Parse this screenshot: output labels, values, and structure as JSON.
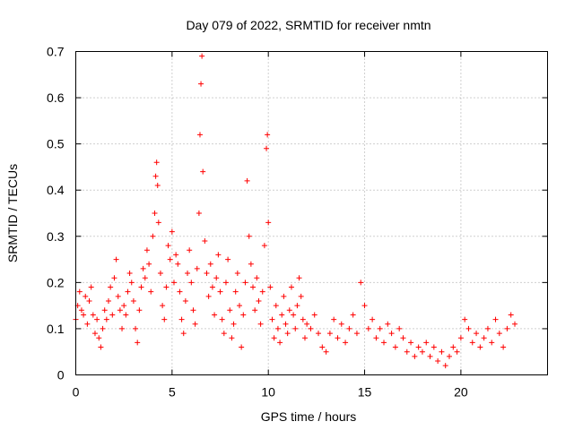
{
  "chart_data": {
    "type": "scatter",
    "title": "Day 079 of 2022, SRMTID for receiver nmtn",
    "xlabel": "GPS time / hours",
    "ylabel": "SRMTID / TECUs",
    "xlim": [
      0,
      24.5
    ],
    "ylim": [
      0,
      0.7
    ],
    "xticks": [
      0,
      5,
      10,
      15,
      20
    ],
    "yticks": [
      0,
      0.1,
      0.2,
      0.3,
      0.4,
      0.5,
      0.6,
      0.7
    ],
    "xtick_labels": [
      "0",
      "5",
      "10",
      "15",
      "20"
    ],
    "ytick_labels": [
      "0",
      "0.1",
      "0.2",
      "0.3",
      "0.4",
      "0.5",
      "0.6",
      "0.7"
    ],
    "grid": true,
    "marker": "+",
    "color": "#ff0000",
    "series": [
      {
        "name": "SRMTID",
        "points": [
          [
            0.0,
            0.12
          ],
          [
            0.1,
            0.15
          ],
          [
            0.2,
            0.18
          ],
          [
            0.3,
            0.14
          ],
          [
            0.4,
            0.13
          ],
          [
            0.5,
            0.17
          ],
          [
            0.6,
            0.11
          ],
          [
            0.7,
            0.16
          ],
          [
            0.8,
            0.19
          ],
          [
            0.9,
            0.13
          ],
          [
            1.0,
            0.09
          ],
          [
            1.1,
            0.12
          ],
          [
            1.2,
            0.08
          ],
          [
            1.3,
            0.06
          ],
          [
            1.4,
            0.1
          ],
          [
            1.5,
            0.14
          ],
          [
            1.6,
            0.12
          ],
          [
            1.7,
            0.16
          ],
          [
            1.8,
            0.19
          ],
          [
            1.9,
            0.13
          ],
          [
            2.0,
            0.21
          ],
          [
            2.1,
            0.25
          ],
          [
            2.2,
            0.17
          ],
          [
            2.3,
            0.14
          ],
          [
            2.4,
            0.1
          ],
          [
            2.5,
            0.15
          ],
          [
            2.6,
            0.13
          ],
          [
            2.7,
            0.18
          ],
          [
            2.8,
            0.22
          ],
          [
            2.9,
            0.2
          ],
          [
            3.0,
            0.16
          ],
          [
            3.1,
            0.1
          ],
          [
            3.2,
            0.07
          ],
          [
            3.3,
            0.14
          ],
          [
            3.4,
            0.19
          ],
          [
            3.5,
            0.23
          ],
          [
            3.6,
            0.21
          ],
          [
            3.7,
            0.27
          ],
          [
            3.8,
            0.24
          ],
          [
            3.9,
            0.18
          ],
          [
            4.0,
            0.3
          ],
          [
            4.1,
            0.35
          ],
          [
            4.15,
            0.43
          ],
          [
            4.2,
            0.46
          ],
          [
            4.25,
            0.41
          ],
          [
            4.3,
            0.33
          ],
          [
            4.4,
            0.22
          ],
          [
            4.5,
            0.15
          ],
          [
            4.6,
            0.12
          ],
          [
            4.7,
            0.19
          ],
          [
            4.8,
            0.28
          ],
          [
            4.9,
            0.25
          ],
          [
            5.0,
            0.31
          ],
          [
            5.1,
            0.2
          ],
          [
            5.2,
            0.26
          ],
          [
            5.3,
            0.24
          ],
          [
            5.4,
            0.18
          ],
          [
            5.5,
            0.12
          ],
          [
            5.6,
            0.09
          ],
          [
            5.7,
            0.16
          ],
          [
            5.8,
            0.22
          ],
          [
            5.9,
            0.27
          ],
          [
            6.0,
            0.2
          ],
          [
            6.1,
            0.14
          ],
          [
            6.2,
            0.11
          ],
          [
            6.3,
            0.23
          ],
          [
            6.4,
            0.35
          ],
          [
            6.45,
            0.52
          ],
          [
            6.5,
            0.63
          ],
          [
            6.55,
            0.69
          ],
          [
            6.6,
            0.44
          ],
          [
            6.7,
            0.29
          ],
          [
            6.8,
            0.22
          ],
          [
            6.9,
            0.17
          ],
          [
            7.0,
            0.24
          ],
          [
            7.1,
            0.19
          ],
          [
            7.2,
            0.13
          ],
          [
            7.3,
            0.21
          ],
          [
            7.4,
            0.26
          ],
          [
            7.5,
            0.18
          ],
          [
            7.6,
            0.12
          ],
          [
            7.7,
            0.09
          ],
          [
            7.8,
            0.2
          ],
          [
            7.9,
            0.25
          ],
          [
            8.0,
            0.14
          ],
          [
            8.1,
            0.08
          ],
          [
            8.2,
            0.11
          ],
          [
            8.3,
            0.18
          ],
          [
            8.4,
            0.22
          ],
          [
            8.5,
            0.15
          ],
          [
            8.6,
            0.06
          ],
          [
            8.7,
            0.13
          ],
          [
            8.8,
            0.2
          ],
          [
            8.9,
            0.42
          ],
          [
            9.0,
            0.3
          ],
          [
            9.1,
            0.24
          ],
          [
            9.2,
            0.19
          ],
          [
            9.3,
            0.14
          ],
          [
            9.4,
            0.21
          ],
          [
            9.5,
            0.16
          ],
          [
            9.6,
            0.11
          ],
          [
            9.7,
            0.18
          ],
          [
            9.8,
            0.28
          ],
          [
            9.9,
            0.49
          ],
          [
            9.95,
            0.52
          ],
          [
            10.0,
            0.33
          ],
          [
            10.1,
            0.19
          ],
          [
            10.2,
            0.12
          ],
          [
            10.3,
            0.08
          ],
          [
            10.4,
            0.15
          ],
          [
            10.5,
            0.1
          ],
          [
            10.6,
            0.07
          ],
          [
            10.7,
            0.13
          ],
          [
            10.8,
            0.17
          ],
          [
            10.9,
            0.11
          ],
          [
            11.0,
            0.09
          ],
          [
            11.1,
            0.14
          ],
          [
            11.2,
            0.19
          ],
          [
            11.3,
            0.13
          ],
          [
            11.4,
            0.1
          ],
          [
            11.5,
            0.15
          ],
          [
            11.6,
            0.21
          ],
          [
            11.7,
            0.17
          ],
          [
            11.8,
            0.12
          ],
          [
            11.9,
            0.08
          ],
          [
            12.0,
            0.11
          ],
          [
            12.2,
            0.1
          ],
          [
            12.4,
            0.13
          ],
          [
            12.6,
            0.09
          ],
          [
            12.8,
            0.06
          ],
          [
            13.0,
            0.05
          ],
          [
            13.2,
            0.09
          ],
          [
            13.4,
            0.12
          ],
          [
            13.6,
            0.08
          ],
          [
            13.8,
            0.11
          ],
          [
            14.0,
            0.07
          ],
          [
            14.2,
            0.1
          ],
          [
            14.4,
            0.13
          ],
          [
            14.6,
            0.09
          ],
          [
            14.8,
            0.2
          ],
          [
            15.0,
            0.15
          ],
          [
            15.2,
            0.1
          ],
          [
            15.4,
            0.12
          ],
          [
            15.6,
            0.08
          ],
          [
            15.8,
            0.1
          ],
          [
            16.0,
            0.07
          ],
          [
            16.2,
            0.11
          ],
          [
            16.4,
            0.09
          ],
          [
            16.6,
            0.06
          ],
          [
            16.8,
            0.1
          ],
          [
            17.0,
            0.08
          ],
          [
            17.2,
            0.05
          ],
          [
            17.4,
            0.07
          ],
          [
            17.6,
            0.04
          ],
          [
            17.8,
            0.06
          ],
          [
            18.0,
            0.05
          ],
          [
            18.2,
            0.07
          ],
          [
            18.4,
            0.04
          ],
          [
            18.6,
            0.06
          ],
          [
            18.8,
            0.03
          ],
          [
            19.0,
            0.05
          ],
          [
            19.2,
            0.02
          ],
          [
            19.4,
            0.04
          ],
          [
            19.6,
            0.06
          ],
          [
            19.8,
            0.05
          ],
          [
            20.0,
            0.08
          ],
          [
            20.2,
            0.12
          ],
          [
            20.4,
            0.1
          ],
          [
            20.6,
            0.07
          ],
          [
            20.8,
            0.09
          ],
          [
            21.0,
            0.06
          ],
          [
            21.2,
            0.08
          ],
          [
            21.4,
            0.1
          ],
          [
            21.6,
            0.07
          ],
          [
            21.8,
            0.12
          ],
          [
            22.0,
            0.09
          ],
          [
            22.2,
            0.06
          ],
          [
            22.4,
            0.1
          ],
          [
            22.6,
            0.13
          ],
          [
            22.8,
            0.11
          ]
        ]
      }
    ]
  }
}
